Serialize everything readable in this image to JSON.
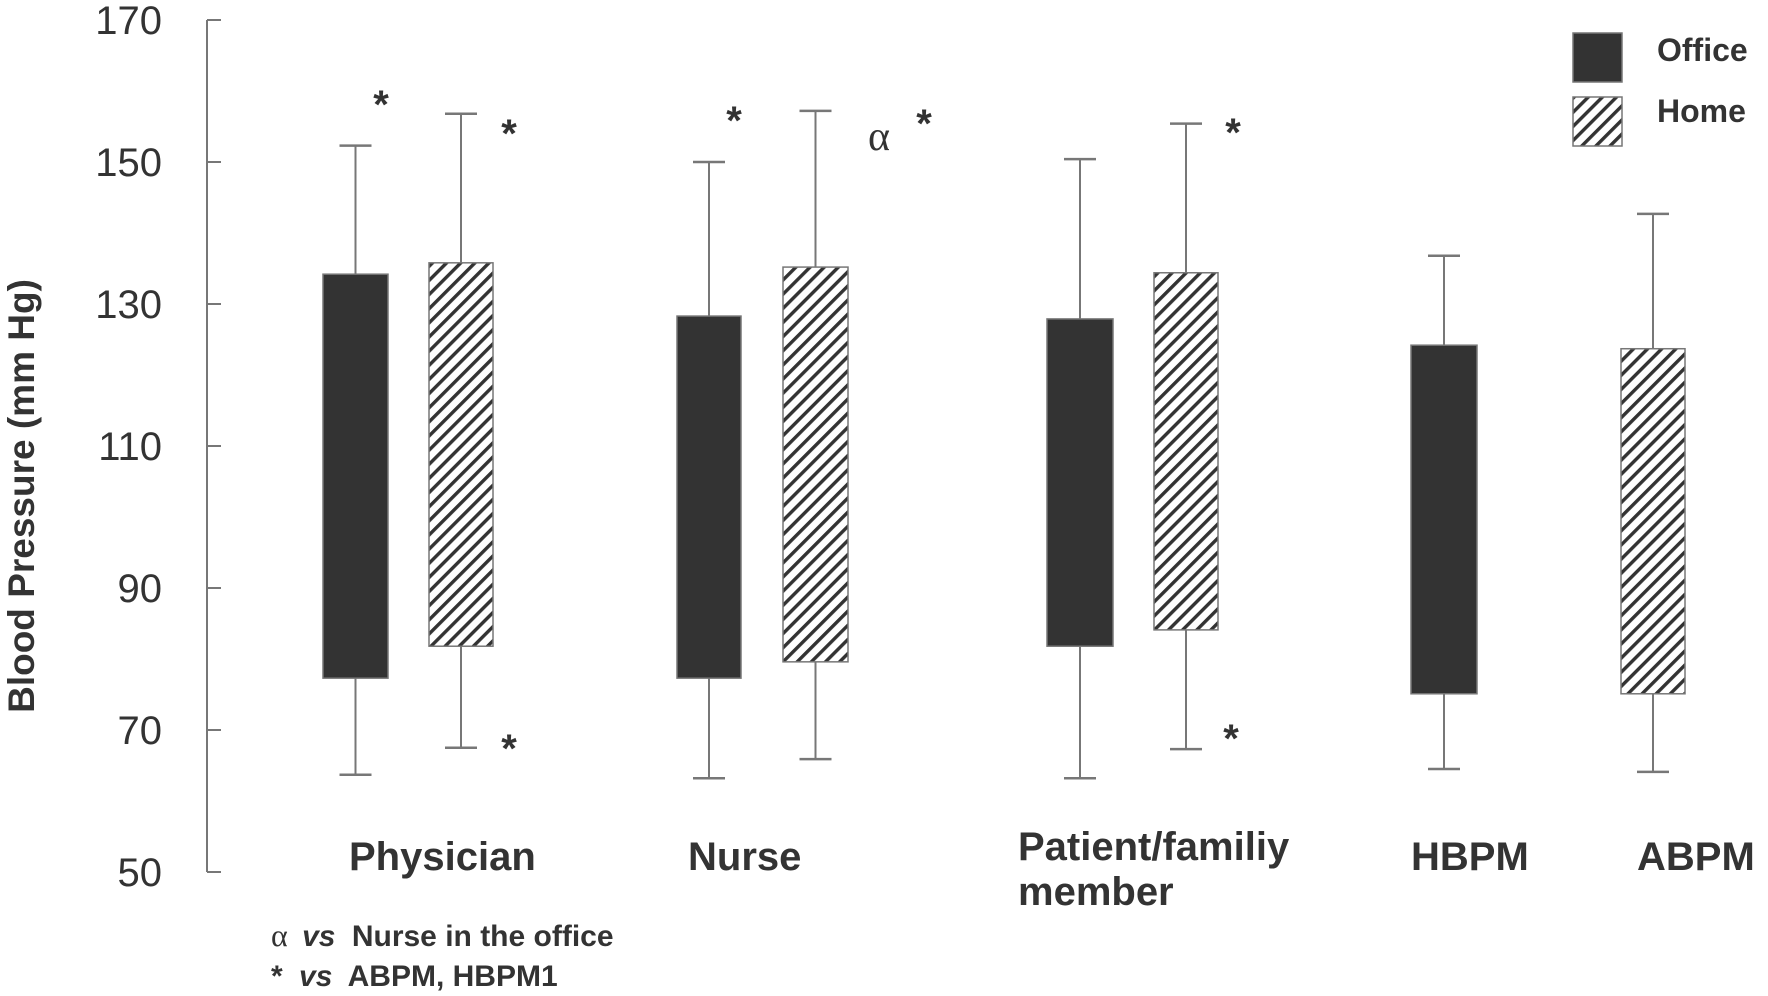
{
  "chart_data": {
    "type": "bar",
    "subtype": "floating-range-bars-with-whiskers",
    "title": "",
    "xlabel": "",
    "ylabel": "Blood Pressure (mm Hg)",
    "ylim": [
      50,
      170
    ],
    "yticks": [
      50,
      70,
      90,
      110,
      130,
      150,
      170
    ],
    "grid": false,
    "legend_position": "top-right",
    "categories": [
      "Physician",
      "Nurse",
      "Patient/familiy member",
      "HBPM",
      "ABPM"
    ],
    "category_label_lines": [
      [
        "Physician"
      ],
      [
        "Nurse"
      ],
      [
        "Patient/familiy",
        "member"
      ],
      [
        "HBPM"
      ],
      [
        "ABPM"
      ]
    ],
    "series": [
      {
        "name": "Office",
        "pattern": "solid",
        "color": "#333333",
        "values": [
          {
            "category": "Physician",
            "box_low": 77.3,
            "box_high": 134.2,
            "whisker_low": 63.7,
            "whisker_high": 152.3
          },
          {
            "category": "Nurse",
            "box_low": 77.3,
            "box_high": 128.3,
            "whisker_low": 63.2,
            "whisker_high": 150.0
          },
          {
            "category": "Patient/familiy member",
            "box_low": 81.8,
            "box_high": 127.9,
            "whisker_low": 63.2,
            "whisker_high": 150.4
          },
          {
            "category": "HBPM",
            "box_low": 75.1,
            "box_high": 124.2,
            "whisker_low": 64.5,
            "whisker_high": 136.8
          },
          null
        ]
      },
      {
        "name": "Home",
        "pattern": "diagonal-hatch",
        "color": "#333333",
        "values": [
          {
            "category": "Physician",
            "box_low": 81.8,
            "box_high": 135.8,
            "whisker_low": 67.5,
            "whisker_high": 156.8
          },
          {
            "category": "Nurse",
            "box_low": 79.6,
            "box_high": 135.2,
            "whisker_low": 65.9,
            "whisker_high": 157.2
          },
          {
            "category": "Patient/familiy member",
            "box_low": 84.1,
            "box_high": 134.4,
            "whisker_low": 67.3,
            "whisker_high": 155.4
          },
          null,
          {
            "category": "ABPM",
            "box_low": 75.1,
            "box_high": 123.7,
            "whisker_low": 64.1,
            "whisker_high": 142.7
          }
        ]
      }
    ],
    "annotations": [
      {
        "text": "*",
        "near": "Physician Office upper whisker"
      },
      {
        "text": "*",
        "near": "Physician Home upper whisker"
      },
      {
        "text": "*",
        "near": "Physician Home lower whisker"
      },
      {
        "text": "*",
        "near": "Nurse Office upper whisker"
      },
      {
        "text": "α *",
        "near": "Nurse Home upper whisker"
      },
      {
        "text": "*",
        "near": "Patient/familiy member Home upper whisker"
      },
      {
        "text": "*",
        "near": "Patient/familiy member Home lower whisker"
      }
    ],
    "footnotes": [
      {
        "symbol": "α",
        "vs": "vs",
        "text": "Nurse in the office"
      },
      {
        "symbol": "*",
        "vs": "vs",
        "text": "ABPM, HBPM1"
      }
    ]
  },
  "legend": {
    "items": [
      {
        "label": "Office",
        "pattern": "solid"
      },
      {
        "label": "Home",
        "pattern": "diagonal-hatch"
      }
    ]
  },
  "colors": {
    "bar_fill": "#333333",
    "bar_border": "#777777",
    "axis": "#777777",
    "text": "#333333",
    "background": "#ffffff"
  }
}
